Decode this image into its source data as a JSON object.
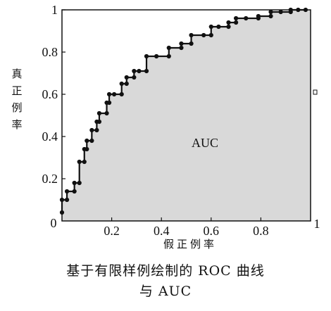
{
  "chart_data": {
    "type": "line",
    "x_tick_labels": [
      "0",
      "0.2",
      "0.4",
      "0.6",
      "0.8",
      "1"
    ],
    "y_tick_labels": [
      "0",
      "0.2",
      "0.4",
      "0.6",
      "0.8",
      "1"
    ],
    "xlim": [
      0,
      1
    ],
    "ylim": [
      0,
      1
    ],
    "xlabel": "假正例率",
    "ylabel": "真正例率",
    "annotation": "AUC",
    "fill_color": "#d9d9d9",
    "line_color": "#111111",
    "grid": false,
    "points": [
      [
        0.0,
        0.04
      ],
      [
        0.0,
        0.1
      ],
      [
        0.02,
        0.1
      ],
      [
        0.02,
        0.14
      ],
      [
        0.05,
        0.14
      ],
      [
        0.05,
        0.18
      ],
      [
        0.07,
        0.18
      ],
      [
        0.07,
        0.28
      ],
      [
        0.09,
        0.28
      ],
      [
        0.09,
        0.34
      ],
      [
        0.1,
        0.34
      ],
      [
        0.1,
        0.38
      ],
      [
        0.12,
        0.38
      ],
      [
        0.12,
        0.43
      ],
      [
        0.14,
        0.43
      ],
      [
        0.14,
        0.47
      ],
      [
        0.15,
        0.47
      ],
      [
        0.15,
        0.51
      ],
      [
        0.18,
        0.51
      ],
      [
        0.18,
        0.56
      ],
      [
        0.19,
        0.56
      ],
      [
        0.19,
        0.6
      ],
      [
        0.21,
        0.6
      ],
      [
        0.24,
        0.6
      ],
      [
        0.24,
        0.65
      ],
      [
        0.26,
        0.65
      ],
      [
        0.26,
        0.68
      ],
      [
        0.29,
        0.68
      ],
      [
        0.29,
        0.71
      ],
      [
        0.31,
        0.71
      ],
      [
        0.34,
        0.71
      ],
      [
        0.34,
        0.78
      ],
      [
        0.38,
        0.78
      ],
      [
        0.43,
        0.78
      ],
      [
        0.43,
        0.82
      ],
      [
        0.48,
        0.82
      ],
      [
        0.48,
        0.84
      ],
      [
        0.52,
        0.84
      ],
      [
        0.52,
        0.88
      ],
      [
        0.57,
        0.88
      ],
      [
        0.6,
        0.88
      ],
      [
        0.6,
        0.92
      ],
      [
        0.63,
        0.92
      ],
      [
        0.67,
        0.92
      ],
      [
        0.67,
        0.94
      ],
      [
        0.7,
        0.94
      ],
      [
        0.7,
        0.96
      ],
      [
        0.74,
        0.96
      ],
      [
        0.79,
        0.96
      ],
      [
        0.79,
        0.97
      ],
      [
        0.84,
        0.97
      ],
      [
        0.84,
        0.99
      ],
      [
        0.88,
        0.99
      ],
      [
        0.92,
        0.99
      ],
      [
        0.92,
        1.0
      ],
      [
        0.95,
        1.0
      ],
      [
        0.98,
        1.0
      ]
    ]
  },
  "caption": {
    "line1": "基于有限样例绘制的 ROC 曲线",
    "line2": "与 AUC"
  }
}
